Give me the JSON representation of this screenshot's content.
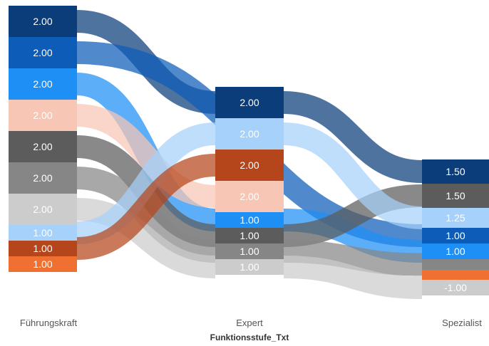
{
  "chart_data": {
    "type": "sankey",
    "xlabel": "Funktionsstufe_Txt",
    "columns": [
      {
        "name": "Führungskraft",
        "nodes": [
          {
            "label": "2.00",
            "color": "#0b3d7a",
            "text_color": "#ffffff"
          },
          {
            "label": "2.00",
            "color": "#0d5cb8",
            "text_color": "#ffffff"
          },
          {
            "label": "2.00",
            "color": "#1e8ff5",
            "text_color": "#ffffff"
          },
          {
            "label": "2.00",
            "color": "#f7c6b4",
            "text_color": "#ffffff"
          },
          {
            "label": "2.00",
            "color": "#5c5c5c",
            "text_color": "#ffffff"
          },
          {
            "label": "2.00",
            "color": "#868686",
            "text_color": "#ffffff"
          },
          {
            "label": "2.00",
            "color": "#cccccc",
            "text_color": "#ffffff"
          },
          {
            "label": "1.00",
            "color": "#a5d1fb",
            "text_color": "#ffffff"
          },
          {
            "label": "1.00",
            "color": "#b5451b",
            "text_color": "#ffffff"
          },
          {
            "label": "1.00",
            "color": "#ef7030",
            "text_color": "#ffffff"
          }
        ]
      },
      {
        "name": "Expert",
        "nodes": [
          {
            "label": "2.00",
            "color": "#0b3d7a",
            "text_color": "#ffffff"
          },
          {
            "label": "2.00",
            "color": "#a5d1fb",
            "text_color": "#ffffff"
          },
          {
            "label": "2.00",
            "color": "#b5451b",
            "text_color": "#ffffff"
          },
          {
            "label": "2.00",
            "color": "#f7c6b4",
            "text_color": "#ffffff"
          },
          {
            "label": "1.00",
            "color": "#1e8ff5",
            "text_color": "#ffffff"
          },
          {
            "label": "1.00",
            "color": "#5c5c5c",
            "text_color": "#ffffff"
          },
          {
            "label": "1.00",
            "color": "#868686",
            "text_color": "#ffffff"
          },
          {
            "label": "1.00",
            "color": "#cccccc",
            "text_color": "#ffffff"
          }
        ]
      },
      {
        "name": "Spezialist",
        "nodes": [
          {
            "label": "1.50",
            "color": "#0b3d7a",
            "text_color": "#ffffff"
          },
          {
            "label": "1.50",
            "color": "#5c5c5c",
            "text_color": "#ffffff"
          },
          {
            "label": "1.25",
            "color": "#a5d1fb",
            "text_color": "#ffffff"
          },
          {
            "label": "1.00",
            "color": "#0d5cb8",
            "text_color": "#ffffff"
          },
          {
            "label": "1.00",
            "color": "#1e8ff5",
            "text_color": "#ffffff"
          },
          {
            "label": "",
            "color": "#868686",
            "text_color": "#ffffff"
          },
          {
            "label": "",
            "color": "#ef7030",
            "text_color": "#ffffff"
          },
          {
            "label": "-1.00",
            "color": "#cccccc",
            "text_color": "#ffffff"
          }
        ]
      }
    ],
    "links": [
      {
        "from": [
          0,
          0
        ],
        "to": [
          1,
          0
        ],
        "color": "#0b3d7a"
      },
      {
        "from": [
          1,
          0
        ],
        "to": [
          2,
          0
        ],
        "color": "#0b3d7a"
      },
      {
        "from": [
          0,
          1
        ],
        "to": [
          2,
          3
        ],
        "color": "#0d5cb8"
      },
      {
        "from": [
          0,
          2
        ],
        "to": [
          1,
          4
        ],
        "color": "#1e8ff5"
      },
      {
        "from": [
          1,
          4
        ],
        "to": [
          2,
          4
        ],
        "color": "#1e8ff5"
      },
      {
        "from": [
          0,
          3
        ],
        "to": [
          1,
          3
        ],
        "color": "#f7c6b4"
      },
      {
        "from": [
          0,
          4
        ],
        "to": [
          1,
          5
        ],
        "color": "#5c5c5c"
      },
      {
        "from": [
          1,
          5
        ],
        "to": [
          2,
          1
        ],
        "color": "#5c5c5c"
      },
      {
        "from": [
          0,
          5
        ],
        "to": [
          1,
          6
        ],
        "color": "#868686"
      },
      {
        "from": [
          1,
          6
        ],
        "to": [
          2,
          5
        ],
        "color": "#868686"
      },
      {
        "from": [
          0,
          6
        ],
        "to": [
          1,
          7
        ],
        "color": "#cccccc"
      },
      {
        "from": [
          1,
          7
        ],
        "to": [
          2,
          7
        ],
        "color": "#cccccc"
      },
      {
        "from": [
          0,
          7
        ],
        "to": [
          1,
          1
        ],
        "color": "#a5d1fb"
      },
      {
        "from": [
          1,
          1
        ],
        "to": [
          2,
          2
        ],
        "color": "#a5d1fb"
      },
      {
        "from": [
          0,
          8
        ],
        "to": [
          1,
          2
        ],
        "color": "#b5451b"
      }
    ]
  }
}
